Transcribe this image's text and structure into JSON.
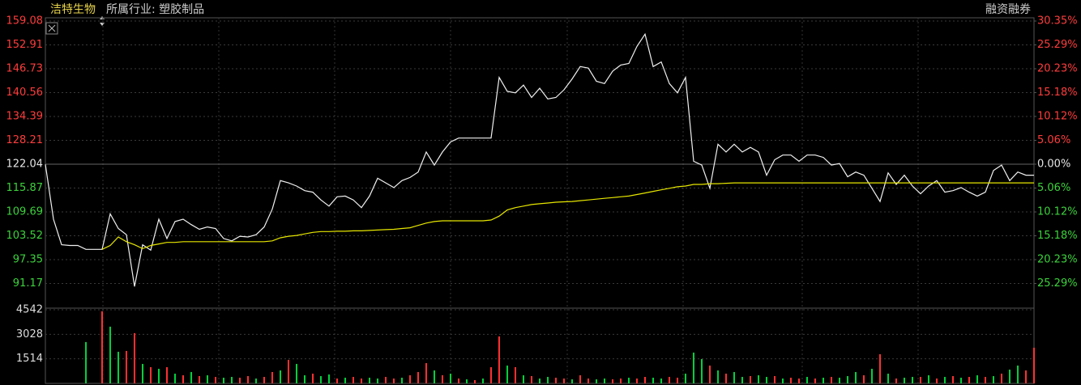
{
  "chart_data": {
    "type": "line",
    "title": "洁特生物",
    "subtitle": "所属行业: 塑胶制品",
    "annotations": [
      "融资融券"
    ],
    "ylim": [
      85,
      159.08
    ],
    "yticks": [
      159.08,
      152.91,
      146.73,
      140.56,
      134.39,
      128.21,
      122.04,
      115.87,
      109.69,
      103.52,
      97.35,
      91.17
    ],
    "y2lim": [
      -30.35,
      30.35
    ],
    "y2ticks": [
      {
        "value": 30.35,
        "label": "30.35%"
      },
      {
        "value": 25.29,
        "label": "25.29%"
      },
      {
        "value": 20.23,
        "label": "20.23%"
      },
      {
        "value": 15.18,
        "label": "15.18%"
      },
      {
        "value": 10.12,
        "label": "10.12%"
      },
      {
        "value": 5.06,
        "label": "5.06%"
      },
      {
        "value": 0,
        "label": "0.00%"
      },
      {
        "value": -5.06,
        "label": "5.06%"
      },
      {
        "value": -10.12,
        "label": "10.12%"
      },
      {
        "value": -15.18,
        "label": "15.18%"
      },
      {
        "value": -20.23,
        "label": "20.23%"
      },
      {
        "value": -25.29,
        "label": "25.29%"
      }
    ],
    "up_color": "#ff3c3c",
    "down_color": "#3cd23c",
    "flat_color": "#e6e6e6",
    "grid": true,
    "series": [
      {
        "color": "#f0f0f0",
        "values": [
          122.0,
          107.8,
          101.2,
          101.0,
          101.0,
          100.0,
          100.0,
          100.0,
          109.2,
          105.4,
          103.8,
          90.4,
          101.2,
          99.8,
          107.8,
          102.8,
          107.2,
          107.8,
          106.4,
          105.2,
          105.8,
          105.4,
          102.8,
          102.2,
          103.4,
          103.2,
          103.8,
          105.8,
          110.4,
          117.8,
          117.2,
          116.4,
          115.2,
          114.8,
          112.8,
          111.2,
          113.6,
          113.8,
          112.8,
          110.8,
          113.8,
          118.4,
          117.2,
          116.0,
          117.8,
          118.6,
          120.0,
          125.2,
          121.8,
          125.2,
          127.8,
          128.8,
          128.8,
          128.8,
          128.8,
          128.8,
          144.5,
          140.9,
          140.5,
          142.5,
          139.3,
          141.7,
          138.9,
          139.3,
          141.3,
          144.1,
          147.3,
          146.9,
          143.5,
          142.9,
          146.1,
          147.7,
          148.1,
          152.5,
          155.7,
          147.3,
          148.5,
          142.9,
          140.5,
          144.5,
          122.8,
          121.8,
          115.8,
          127.2,
          125.2,
          127.2,
          125.2,
          126.4,
          125.2,
          119.2,
          123.2,
          124.4,
          124.4,
          122.8,
          124.4,
          124.4,
          123.8,
          121.8,
          122.2,
          118.8,
          120.0,
          119.2,
          115.8,
          112.4,
          119.8,
          116.8,
          119.2,
          116.4,
          114.4,
          116.4,
          117.8,
          114.8,
          115.2,
          116.0,
          114.8,
          113.8,
          114.8,
          120.4,
          121.8,
          117.8,
          120.0,
          119.2,
          119.2
        ]
      },
      {
        "color": "#e6e600",
        "values": [
          null,
          null,
          null,
          null,
          null,
          null,
          null,
          100.0,
          101.0,
          103.2,
          102.0,
          101.2,
          100.2,
          101.0,
          101.4,
          101.8,
          101.8,
          102.0,
          102.0,
          102.0,
          102.0,
          102.0,
          102.0,
          102.0,
          102.0,
          102.0,
          102.0,
          102.0,
          102.2,
          103.0,
          103.4,
          103.6,
          104.0,
          104.4,
          104.6,
          104.6,
          104.7,
          104.7,
          104.8,
          104.8,
          104.9,
          105.0,
          105.1,
          105.2,
          105.4,
          105.6,
          106.2,
          106.8,
          107.2,
          107.4,
          107.4,
          107.4,
          107.4,
          107.4,
          107.4,
          107.6,
          108.6,
          110.2,
          110.8,
          111.2,
          111.6,
          111.8,
          112.0,
          112.2,
          112.3,
          112.4,
          112.6,
          112.8,
          113.0,
          113.2,
          113.4,
          113.6,
          113.8,
          114.2,
          114.6,
          115.0,
          115.4,
          115.8,
          116.2,
          116.4,
          116.8,
          116.8,
          117.0,
          117.0,
          117.1,
          117.2,
          117.2,
          117.2,
          117.2,
          117.2,
          117.2,
          117.2,
          117.2,
          117.2,
          117.2,
          117.2,
          117.2,
          117.2,
          117.2,
          117.2,
          117.2,
          117.2,
          117.2,
          117.2,
          117.2,
          117.2,
          117.2,
          117.2,
          117.2,
          117.2,
          117.2,
          117.2,
          117.2,
          117.2,
          117.2,
          117.2,
          117.2,
          117.2,
          117.2,
          117.2,
          117.2,
          117.2,
          117.2
        ]
      }
    ],
    "volume": {
      "ylim": [
        0,
        4542
      ],
      "yticks": [
        4542,
        3028,
        1514
      ],
      "values": [
        0,
        0,
        0,
        0,
        0,
        2550,
        0,
        4450,
        3500,
        1950,
        2000,
        3100,
        1200,
        1000,
        900,
        1000,
        600,
        500,
        700,
        450,
        500,
        400,
        350,
        400,
        350,
        450,
        300,
        400,
        700,
        800,
        1450,
        1200,
        500,
        600,
        450,
        550,
        300,
        350,
        400,
        300,
        350,
        300,
        400,
        300,
        350,
        500,
        700,
        1250,
        800,
        500,
        600,
        300,
        250,
        200,
        300,
        1000,
        2900,
        1100,
        1000,
        500,
        450,
        300,
        400,
        350,
        300,
        250,
        500,
        300,
        250,
        300,
        250,
        300,
        350,
        300,
        400,
        350,
        300,
        400,
        350,
        600,
        1900,
        1500,
        1100,
        800,
        600,
        700,
        400,
        450,
        500,
        400,
        450,
        300,
        350,
        300,
        400,
        300,
        350,
        400,
        350,
        450,
        700,
        500,
        900,
        1800,
        600,
        300,
        350,
        400,
        400,
        500,
        300,
        400,
        450,
        350,
        400,
        500,
        400,
        450,
        600,
        850,
        1100,
        800,
        2200
      ],
      "colors": [
        "#00d23c",
        "#00d23c",
        "#00d23c",
        "#00d23c",
        "#00d23c",
        "#00d23c",
        "#00d23c",
        "#ff3030",
        "#00d23c",
        "#00d23c",
        "#ff3030",
        "#ff3030",
        "#00d23c",
        "#ff3030",
        "#00d23c",
        "#ff3030",
        "#00d23c",
        "#ff3030",
        "#00d23c",
        "#ff3030",
        "#00d23c",
        "#ff3030",
        "#00d23c",
        "#00d23c",
        "#ff3030",
        "#ff3030",
        "#00d23c",
        "#ff3030",
        "#ff3030",
        "#00d23c",
        "#ff3030",
        "#00d23c",
        "#00d23c",
        "#ff3030",
        "#00d23c",
        "#00d23c",
        "#ff3030",
        "#00d23c",
        "#ff3030",
        "#ff3030",
        "#00d23c",
        "#00d23c",
        "#ff3030",
        "#ff3030",
        "#00d23c",
        "#ff3030",
        "#ff3030",
        "#ff3030",
        "#00d23c",
        "#ff3030",
        "#00d23c",
        "#ff3030",
        "#00d23c",
        "#ff3030",
        "#00d23c",
        "#ff3030",
        "#ff3030",
        "#00d23c",
        "#ff3030",
        "#00d23c",
        "#ff3030",
        "#00d23c",
        "#00d23c",
        "#ff3030",
        "#ff3030",
        "#00d23c",
        "#ff3030",
        "#ff3030",
        "#00d23c",
        "#00d23c",
        "#ff3030",
        "#ff3030",
        "#00d23c",
        "#ff3030",
        "#ff3030",
        "#00d23c",
        "#00d23c",
        "#ff3030",
        "#ff3030",
        "#00d23c",
        "#00d23c",
        "#00d23c",
        "#ff3030",
        "#00d23c",
        "#ff3030",
        "#00d23c",
        "#00d23c",
        "#ff3030",
        "#00d23c",
        "#00d23c",
        "#ff3030",
        "#00d23c",
        "#ff3030",
        "#ff3030",
        "#00d23c",
        "#ff3030",
        "#00d23c",
        "#ff3030",
        "#00d23c",
        "#00d23c",
        "#00d23c",
        "#ff3030",
        "#00d23c",
        "#ff3030",
        "#00d23c",
        "#ff3030",
        "#00d23c",
        "#00d23c",
        "#ff3030",
        "#00d23c",
        "#ff3030",
        "#00d23c",
        "#ff3030",
        "#00d23c",
        "#ff3030",
        "#00d23c",
        "#ff3030",
        "#00d23c",
        "#ff3030",
        "#00d23c",
        "#00d23c",
        "#ff3030",
        "#ff3030"
      ]
    }
  }
}
